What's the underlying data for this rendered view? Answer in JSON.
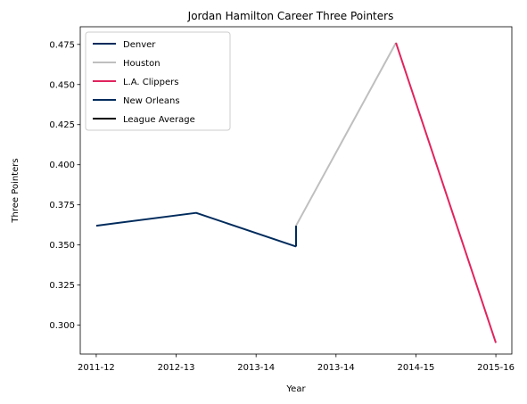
{
  "chart_data": {
    "type": "line",
    "title": "Jordan Hamilton Career Three Pointers",
    "xlabel": "Year",
    "ylabel": "Three Pointers",
    "categories": [
      "2011-12",
      "2012-13",
      "2013-14",
      "2013-14",
      "2014-15",
      "2015-16"
    ],
    "x_range": [
      -0.2,
      5.2
    ],
    "ylim": [
      0.282,
      0.486
    ],
    "yticks": [
      0.3,
      0.325,
      0.35,
      0.375,
      0.4,
      0.425,
      0.45,
      0.475
    ],
    "ytick_labels": [
      "0.300",
      "0.325",
      "0.350",
      "0.375",
      "0.400",
      "0.425",
      "0.450",
      "0.475"
    ],
    "legend_position": "upper-left",
    "grid": false,
    "series": [
      {
        "name": "Denver",
        "color": "#002B5C",
        "points": [
          [
            0,
            0.362
          ],
          [
            1.25,
            0.37
          ],
          [
            2.5,
            0.349
          ]
        ]
      },
      {
        "name": "Houston",
        "color": "#BFBFBF",
        "points": [
          [
            2.5,
            0.362
          ],
          [
            3.75,
            0.476
          ]
        ]
      },
      {
        "name": "L.A. Clippers",
        "color": "#E0245E",
        "points": [
          [
            3.75,
            0.476
          ],
          [
            5,
            0.289
          ]
        ]
      },
      {
        "name": "New Orleans",
        "color": "#002B5C",
        "points": [
          [
            2.5,
            0.349
          ],
          [
            2.5,
            0.362
          ]
        ]
      },
      {
        "name": "League Average",
        "color": "#000000",
        "points": []
      }
    ]
  }
}
